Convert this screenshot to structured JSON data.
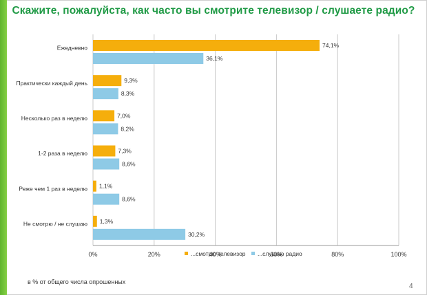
{
  "title": "Скажите, пожалуйста, как часто вы смотрите телевизор / слушаете радио?",
  "footnote": "в % от общего числа опрошенных",
  "page_number": "4",
  "chart_data": {
    "type": "bar",
    "orientation": "horizontal",
    "categories": [
      "Ежедневно",
      "Практически каждый день",
      "Несколько раз в неделю",
      "1-2 раза в неделю",
      "Реже чем 1 раз в неделю",
      "Не смотрю / не слушаю"
    ],
    "series": [
      {
        "name": "...смотрю телевизор",
        "color": "#f5ae0c",
        "values": [
          74.1,
          9.3,
          7.0,
          7.3,
          1.1,
          1.3
        ],
        "labels": [
          "74,1%",
          "9,3%",
          "7,0%",
          "7,3%",
          "1,1%",
          "1,3%"
        ]
      },
      {
        "name": "...слушаю радио",
        "color": "#8ecae6",
        "values": [
          36.1,
          8.3,
          8.2,
          8.6,
          8.6,
          30.2
        ],
        "labels": [
          "36,1%",
          "8,3%",
          "8,2%",
          "8,6%",
          "8,6%",
          "30,2%"
        ]
      }
    ],
    "xlim": [
      0,
      100
    ],
    "xticks": [
      0,
      20,
      40,
      60,
      80,
      100
    ],
    "xtick_labels": [
      "0%",
      "20%",
      "40%",
      "60%",
      "80%",
      "100%"
    ],
    "grid": true,
    "legend": "bottom"
  }
}
